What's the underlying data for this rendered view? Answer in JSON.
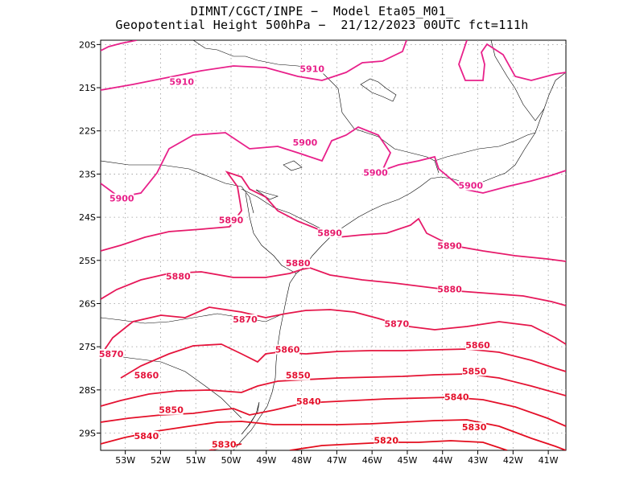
{
  "title": {
    "line1": "DIMNT/CGCT/INPE −  Model Eta05_M01_",
    "line2": "Geopotential Height 500hPa −  21/12/2023 00UTC fct=111h"
  },
  "chart_data": {
    "type": "contour-map",
    "lon_range": [
      -53.7,
      -40.5
    ],
    "lat_range": [
      -29.4,
      -19.9
    ],
    "x_ticks": [
      "53W",
      "52W",
      "51W",
      "50W",
      "49W",
      "48W",
      "47W",
      "46W",
      "45W",
      "44W",
      "43W",
      "42W",
      "41W"
    ],
    "y_ticks": [
      "20S",
      "21S",
      "22S",
      "23S",
      "24S",
      "25S",
      "26S",
      "27S",
      "28S",
      "29S"
    ],
    "grid": true,
    "contours": [
      {
        "value": "5910",
        "color": "#e8208a"
      },
      {
        "value": "5900",
        "color": "#e8208a"
      },
      {
        "value": "5890",
        "color": "#e61a6a"
      },
      {
        "value": "5880",
        "color": "#e6185a"
      },
      {
        "value": "5870",
        "color": "#e5164a"
      },
      {
        "value": "5860",
        "color": "#e5143c"
      },
      {
        "value": "5850",
        "color": "#e41232"
      },
      {
        "value": "5840",
        "color": "#e4102a"
      },
      {
        "value": "5830",
        "color": "#e40e22"
      },
      {
        "value": "5820",
        "color": "#e30c1c"
      }
    ],
    "contour_labels": [
      {
        "text": "5910",
        "lon": -51.4,
        "lat": -20.9
      },
      {
        "text": "5910",
        "lon": -47.7,
        "lat": -20.6
      },
      {
        "text": "5900",
        "lon": -47.9,
        "lat": -22.3
      },
      {
        "text": "5900",
        "lon": -45.9,
        "lat": -23.0
      },
      {
        "text": "5900",
        "lon": -43.2,
        "lat": -23.3
      },
      {
        "text": "5900",
        "lon": -53.1,
        "lat": -23.6
      },
      {
        "text": "5890",
        "lon": -50.0,
        "lat": -24.1
      },
      {
        "text": "5890",
        "lon": -47.2,
        "lat": -24.4
      },
      {
        "text": "5890",
        "lon": -43.8,
        "lat": -24.7
      },
      {
        "text": "5880",
        "lon": -51.5,
        "lat": -25.4
      },
      {
        "text": "5880",
        "lon": -48.1,
        "lat": -25.1
      },
      {
        "text": "5880",
        "lon": -43.8,
        "lat": -25.7
      },
      {
        "text": "5870",
        "lon": -49.6,
        "lat": -26.4
      },
      {
        "text": "5870",
        "lon": -45.3,
        "lat": -26.5
      },
      {
        "text": "5870",
        "lon": -53.4,
        "lat": -27.2
      },
      {
        "text": "5860",
        "lon": -48.4,
        "lat": -27.1
      },
      {
        "text": "5860",
        "lon": -43.0,
        "lat": -27.0
      },
      {
        "text": "5860",
        "lon": -52.4,
        "lat": -27.7
      },
      {
        "text": "5850",
        "lon": -48.1,
        "lat": -27.7
      },
      {
        "text": "5850",
        "lon": -43.1,
        "lat": -27.6
      },
      {
        "text": "5850",
        "lon": -51.7,
        "lat": -28.5
      },
      {
        "text": "5840",
        "lon": -47.8,
        "lat": -28.3
      },
      {
        "text": "5840",
        "lon": -43.6,
        "lat": -28.2
      },
      {
        "text": "5840",
        "lon": -52.4,
        "lat": -29.1
      },
      {
        "text": "5830",
        "lon": -43.1,
        "lat": -28.9
      },
      {
        "text": "5830",
        "lon": -50.2,
        "lat": -29.3
      },
      {
        "text": "5820",
        "lon": -45.6,
        "lat": -29.2
      }
    ]
  }
}
